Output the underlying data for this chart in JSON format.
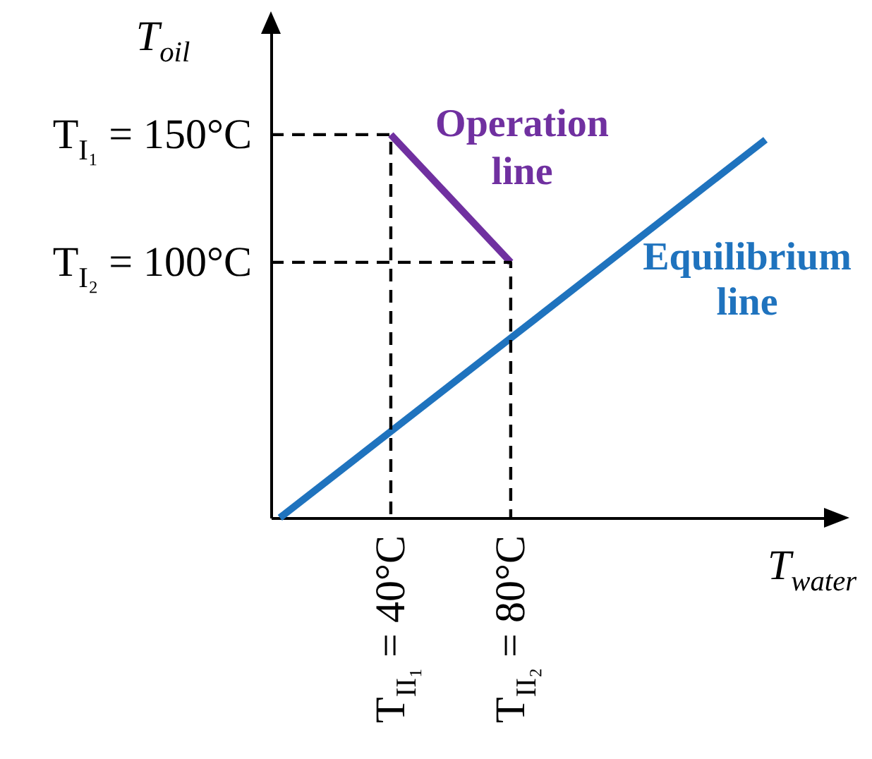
{
  "chart_data": {
    "type": "line",
    "xlabel": "T$_{water}$",
    "ylabel": "T$_{oil}$",
    "xlim": [
      0,
      185
    ],
    "ylim": [
      0,
      190
    ],
    "xticks": [
      {
        "value": 40,
        "label": "T$_{II₁}$ = 40°C"
      },
      {
        "value": 80,
        "label": "T$_{II₂}$ = 80°C"
      }
    ],
    "yticks": [
      {
        "value": 100,
        "label": "T$_{I₂}$ = 100°C"
      },
      {
        "value": 150,
        "label": "T$_{I₁}$ = 150°C"
      }
    ],
    "grid": false,
    "line_style": "solid",
    "series": [
      {
        "name": "Operation line",
        "color": "#7030a0",
        "x": [
          40,
          80
        ],
        "values": [
          150,
          100
        ]
      },
      {
        "name": "Equilibrium line",
        "color": "#1f73be",
        "x": [
          3,
          165
        ],
        "values": [
          0,
          148
        ]
      },
      {
        "color": "#000000",
        "line_style": "dashed",
        "x": [
          0,
          40,
          40
        ],
        "values": [
          150,
          150,
          0
        ]
      },
      {
        "color": "#000000",
        "line_style": "dashed",
        "x": [
          0,
          80,
          80
        ],
        "values": [
          100,
          100,
          0
        ]
      }
    ]
  }
}
